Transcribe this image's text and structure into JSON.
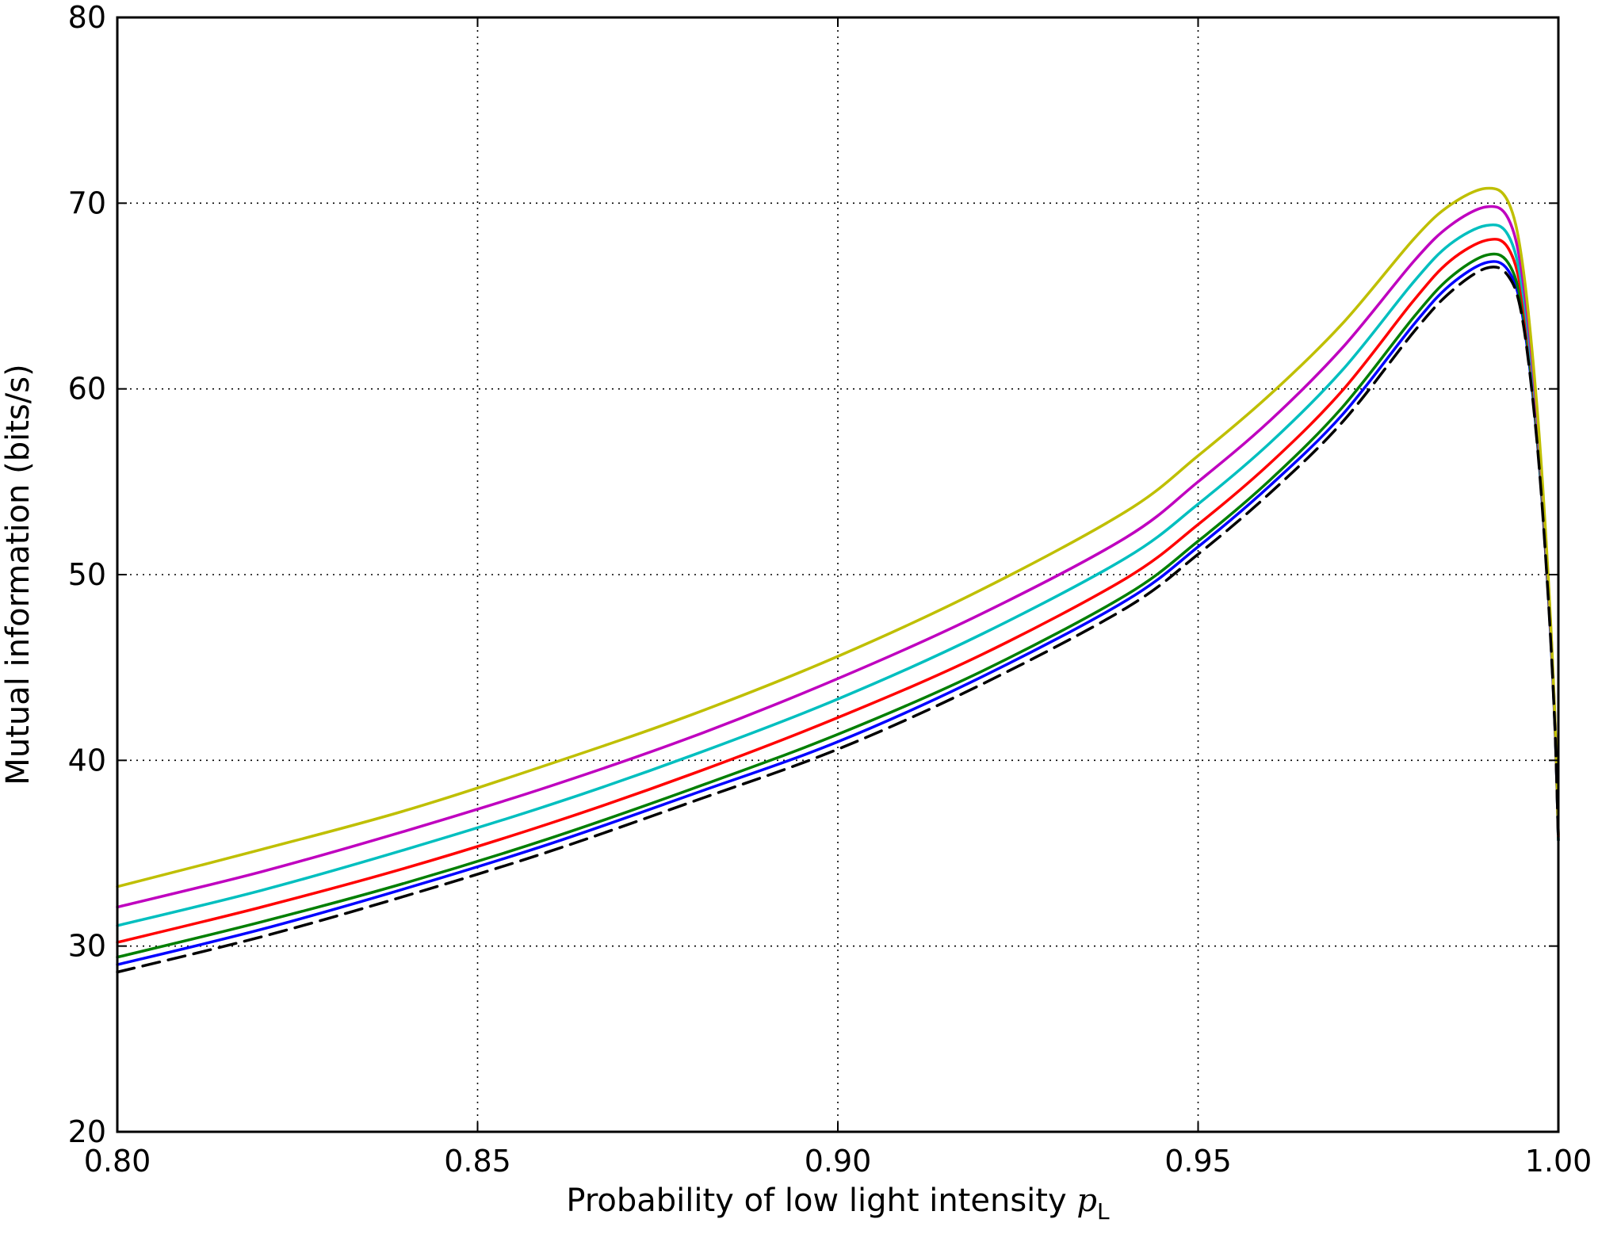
{
  "chart_data": {
    "type": "line",
    "title": "",
    "xlabel": "Probability of low light intensity ",
    "xlabel_symbol": "p",
    "xlabel_subscript": "L",
    "ylabel": "Mutual information (bits/s)",
    "xlim": [
      0.8,
      1.0
    ],
    "ylim": [
      20,
      80
    ],
    "xticks": [
      0.8,
      0.85,
      0.9,
      0.95,
      1.0
    ],
    "xtick_labels": [
      "0.80",
      "0.85",
      "0.90",
      "0.95",
      "1.00"
    ],
    "yticks": [
      20,
      30,
      40,
      50,
      60,
      70,
      80
    ],
    "ytick_labels": [
      "20",
      "30",
      "40",
      "50",
      "60",
      "70",
      "80"
    ],
    "grid": true,
    "legend": "none",
    "x": [
      0.8,
      0.82,
      0.84,
      0.86,
      0.88,
      0.9,
      0.92,
      0.94,
      0.95,
      0.96,
      0.97,
      0.98,
      0.985,
      0.99,
      0.993,
      0.995,
      0.997,
      0.9985,
      0.9995,
      1.0
    ],
    "series": [
      {
        "color": "#0000ff",
        "dash": false,
        "values": [
          29.0,
          30.9,
          33.1,
          35.5,
          38.2,
          41.0,
          44.5,
          48.6,
          51.5,
          54.8,
          58.6,
          63.5,
          65.6,
          66.8,
          66.4,
          64.0,
          57.5,
          49.5,
          42.0,
          35.7
        ]
      },
      {
        "color": "#007f00",
        "dash": false,
        "values": [
          29.4,
          31.3,
          33.4,
          35.8,
          38.5,
          41.4,
          44.8,
          48.9,
          51.8,
          55.1,
          59.0,
          63.9,
          66.0,
          67.2,
          66.8,
          64.3,
          57.7,
          49.7,
          42.1,
          35.7
        ]
      },
      {
        "color": "#ff0000",
        "dash": false,
        "values": [
          30.2,
          32.1,
          34.2,
          36.6,
          39.3,
          42.3,
          45.7,
          49.8,
          52.7,
          56.0,
          59.9,
          64.8,
          66.9,
          68.0,
          67.6,
          64.9,
          58.1,
          49.9,
          42.2,
          35.9
        ]
      },
      {
        "color": "#00bfbf",
        "dash": false,
        "values": [
          31.1,
          33.0,
          35.2,
          37.6,
          40.3,
          43.3,
          46.8,
          50.9,
          53.8,
          57.1,
          61.0,
          65.8,
          67.8,
          68.8,
          68.3,
          65.4,
          58.4,
          50.1,
          42.3,
          36.0
        ]
      },
      {
        "color": "#bf00bf",
        "dash": false,
        "values": [
          32.1,
          34.0,
          36.2,
          38.6,
          41.3,
          44.4,
          47.9,
          52.0,
          55.0,
          58.3,
          62.2,
          66.9,
          68.8,
          69.8,
          69.2,
          66.1,
          58.8,
          50.3,
          42.4,
          36.0
        ]
      },
      {
        "color": "#bfbf00",
        "dash": false,
        "values": [
          33.2,
          35.2,
          37.3,
          39.8,
          42.5,
          45.6,
          49.2,
          53.4,
          56.4,
          59.7,
          63.5,
          68.1,
          69.9,
          70.8,
          70.1,
          66.8,
          59.2,
          50.5,
          42.5,
          36.0
        ]
      },
      {
        "color": "#000000",
        "dash": true,
        "values": [
          28.6,
          30.5,
          32.7,
          35.1,
          37.8,
          40.6,
          44.1,
          48.2,
          51.1,
          54.4,
          58.2,
          63.1,
          65.2,
          66.5,
          66.1,
          63.8,
          57.3,
          49.3,
          41.9,
          35.7
        ]
      }
    ]
  }
}
